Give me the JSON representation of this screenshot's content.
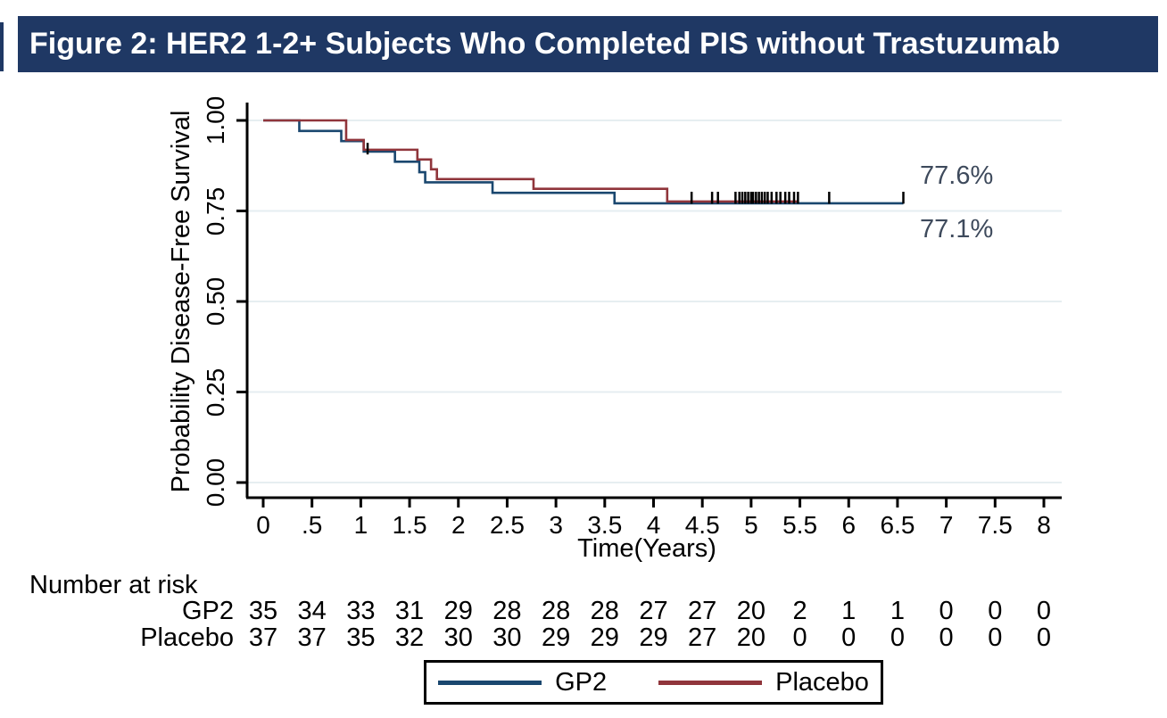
{
  "banner": {
    "title": "Figure 2: HER2 1-2+ Subjects Who Completed PIS without Trastuzumab"
  },
  "chart_data": {
    "type": "line",
    "subtype": "kaplan_meier_step",
    "xlabel": "Time(Years)",
    "ylabel": "Probability Disease-Free Survival",
    "xlim": [
      0,
      8.2
    ],
    "ylim": [
      0,
      1.04
    ],
    "grid": {
      "horizontal": true,
      "color": "#e6eef1"
    },
    "x_ticks": {
      "values": [
        0,
        0.5,
        1,
        1.5,
        2,
        2.5,
        3,
        3.5,
        4,
        4.5,
        5,
        5.5,
        6,
        6.5,
        7,
        7.5,
        8
      ],
      "labels": [
        "0",
        ".5",
        "1",
        "1.5",
        "2",
        "2.5",
        "3",
        "3.5",
        "4",
        "4.5",
        "5",
        "5.5",
        "6",
        "6.5",
        "7",
        "7.5",
        "8"
      ]
    },
    "y_ticks": {
      "values": [
        1.0,
        0.75,
        0.5,
        0.25,
        0.0
      ],
      "labels": [
        "1.00",
        "0.75",
        "0.50",
        "0.25",
        "0.00"
      ]
    },
    "series": [
      {
        "name": "GP2",
        "color": "#1a476f",
        "final_value_label": "77.1%",
        "end_time": 6.56,
        "steps": [
          [
            0,
            1.0
          ],
          [
            0.37,
            0.971
          ],
          [
            0.8,
            0.943
          ],
          [
            1.03,
            0.914
          ],
          [
            1.35,
            0.886
          ],
          [
            1.6,
            0.857
          ],
          [
            1.66,
            0.829
          ],
          [
            2.35,
            0.8
          ],
          [
            3.6,
            0.771
          ]
        ]
      },
      {
        "name": "Placebo",
        "color": "#90353b",
        "final_value_label": "77.6%",
        "end_time": 5.49,
        "steps": [
          [
            0,
            1.0
          ],
          [
            0.85,
            0.946
          ],
          [
            1.03,
            0.919
          ],
          [
            1.58,
            0.892
          ],
          [
            1.72,
            0.865
          ],
          [
            1.78,
            0.838
          ],
          [
            2.77,
            0.811
          ],
          [
            4.14,
            0.776
          ]
        ]
      }
    ],
    "censor_marks": {
      "color": "#000000",
      "other": [
        {
          "time": 1.07,
          "from": 0.938,
          "to": 0.906
        }
      ],
      "tail_from": 0.803,
      "tail_to": 0.77,
      "tail_times": [
        4.39,
        4.6,
        4.66,
        4.84,
        4.88,
        4.91,
        4.94,
        4.97,
        5.0,
        5.02,
        5.05,
        5.08,
        5.11,
        5.14,
        5.17,
        5.21,
        5.26,
        5.3,
        5.35,
        5.39,
        5.44,
        5.48,
        5.8,
        6.56
      ]
    },
    "legend_position": "bottom"
  },
  "annotations": [
    {
      "text": "77.6%",
      "series": "Placebo"
    },
    {
      "text": "77.1%",
      "series": "GP2"
    }
  ],
  "risk_table": {
    "heading": "Number at risk",
    "rows": [
      {
        "label": "GP2",
        "values": [
          35,
          34,
          33,
          31,
          29,
          28,
          28,
          28,
          27,
          27,
          20,
          2,
          1,
          1,
          0,
          0,
          0
        ]
      },
      {
        "label": "Placebo",
        "values": [
          37,
          37,
          35,
          32,
          30,
          30,
          29,
          29,
          29,
          27,
          20,
          0,
          0,
          0,
          0,
          0,
          0
        ]
      }
    ]
  },
  "legend": {
    "items": [
      {
        "label": "GP2",
        "color": "#1a476f"
      },
      {
        "label": "Placebo",
        "color": "#90353b"
      }
    ]
  },
  "colors": {
    "banner_bg": "#1f3864",
    "banner_text": "#ffffff",
    "axis": "#000000",
    "gridline": "#e6eef1",
    "annotation_text": "#3e4a5c",
    "censor": "#000000"
  }
}
